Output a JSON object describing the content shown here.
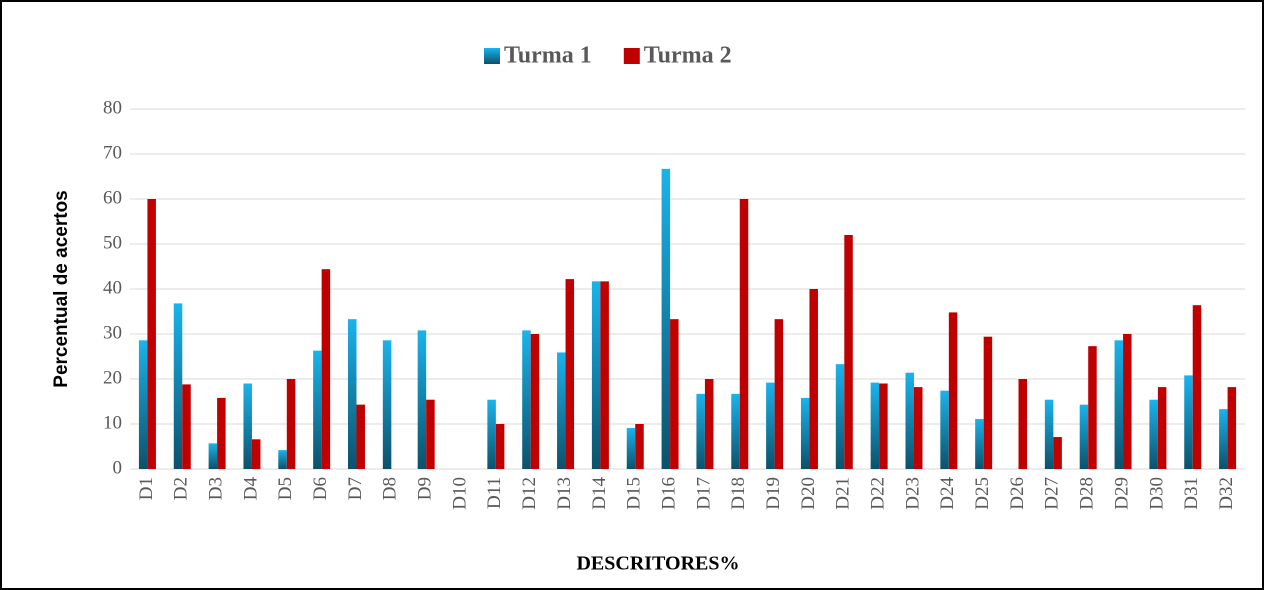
{
  "chart_data": {
    "type": "bar",
    "x_label": "DESCRITORES%",
    "y_label": "Percentual de acertos",
    "categories": [
      "D1",
      "D2",
      "D3",
      "D4",
      "D5",
      "D6",
      "D7",
      "D8",
      "D9",
      "D10",
      "D11",
      "D12",
      "D13",
      "D14",
      "D15",
      "D16",
      "D17",
      "D18",
      "D19",
      "D20",
      "D21",
      "D22",
      "D23",
      "D24",
      "D25",
      "D26",
      "D27",
      "D28",
      "D29",
      "D30",
      "D31",
      "D32"
    ],
    "series": [
      {
        "name": "Turma 1",
        "color": "#1ab3ec",
        "values": [
          28.6,
          36.8,
          5.7,
          19.0,
          4.2,
          26.3,
          33.3,
          28.6,
          30.8,
          0,
          15.4,
          30.8,
          25.9,
          41.7,
          9.1,
          66.7,
          16.7,
          16.7,
          19.2,
          15.8,
          23.3,
          19.2,
          21.4,
          17.4,
          11.1,
          0,
          15.4,
          14.3,
          28.6,
          15.4,
          20.8,
          13.3
        ]
      },
      {
        "name": "Turma 2",
        "color": "#c00000",
        "values": [
          60,
          18.8,
          15.8,
          6.6,
          20,
          44.4,
          14.3,
          0,
          15.4,
          0,
          10,
          30,
          42.2,
          41.7,
          10,
          33.3,
          20,
          60,
          33.3,
          40,
          52,
          19,
          18.2,
          34.8,
          29.4,
          20,
          7.1,
          27.3,
          30,
          18.2,
          36.4,
          18.2
        ]
      }
    ],
    "ylim": [
      0,
      80
    ],
    "yticks": [
      0,
      10,
      20,
      30,
      40,
      50,
      60,
      70,
      80
    ],
    "grid": true,
    "legend": "top"
  }
}
